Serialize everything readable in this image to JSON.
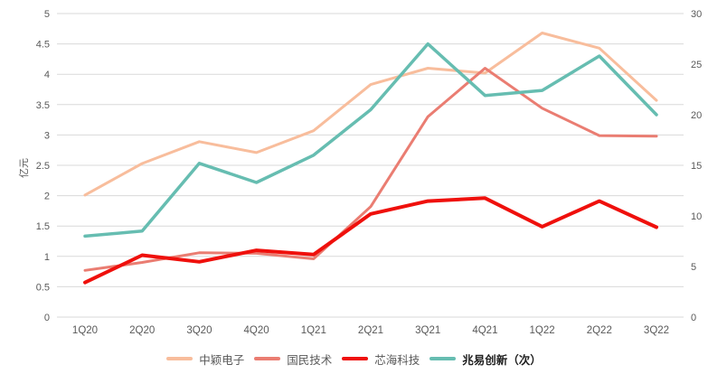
{
  "styles": {
    "background_color": "#FFFFFF",
    "text_color": "#595959",
    "grid_color": "#D9D9D9",
    "legend_text_color": "#595959",
    "legend_bold_text_color": "#1F1F1F"
  },
  "chart_data": {
    "type": "line",
    "title": "",
    "grid": true,
    "legend_position": "bottom",
    "categories": [
      "1Q20",
      "2Q20",
      "3Q20",
      "4Q20",
      "1Q21",
      "2Q21",
      "3Q21",
      "4Q21",
      "1Q22",
      "2Q22",
      "3Q22"
    ],
    "y_left": {
      "label": "亿元",
      "min": 0,
      "max": 5,
      "step": 0.5,
      "ticks": [
        "0",
        "0.5",
        "1",
        "1.5",
        "2",
        "2.5",
        "3",
        "3.5",
        "4",
        "4.5",
        "5"
      ]
    },
    "y_right": {
      "min": 0,
      "max": 30,
      "step": 5,
      "ticks": [
        "0",
        "5",
        "10",
        "15",
        "20",
        "25",
        "30"
      ]
    },
    "series": [
      {
        "id": "zhongying-dianzi",
        "name": "中颖电子",
        "axis": "left",
        "color": "#F8BD9C",
        "line_width": 3,
        "bold_legend": false,
        "values": [
          2.01,
          2.53,
          2.89,
          2.71,
          3.07,
          3.83,
          4.1,
          4.02,
          4.68,
          4.43,
          3.57
        ]
      },
      {
        "id": "guomin-jishu",
        "name": "国民技术",
        "axis": "left",
        "color": "#EA7D72",
        "line_width": 3,
        "bold_legend": false,
        "values": [
          0.77,
          0.9,
          1.06,
          1.05,
          0.96,
          1.82,
          3.3,
          4.1,
          3.44,
          2.99,
          2.98
        ]
      },
      {
        "id": "xinhai-keji",
        "name": "芯海科技",
        "axis": "left",
        "color": "#EF100C",
        "line_width": 4,
        "bold_legend": false,
        "values": [
          0.57,
          1.02,
          0.91,
          1.1,
          1.03,
          1.7,
          1.91,
          1.96,
          1.49,
          1.91,
          1.48
        ]
      },
      {
        "id": "zhaoyi-chuangxin",
        "name": "兆易创新（次）",
        "axis": "right",
        "color": "#66BDB1",
        "line_width": 3.5,
        "bold_legend": true,
        "values": [
          8.0,
          8.5,
          15.2,
          13.3,
          16.0,
          20.5,
          27.0,
          21.9,
          22.4,
          25.8,
          20.0
        ]
      }
    ]
  }
}
